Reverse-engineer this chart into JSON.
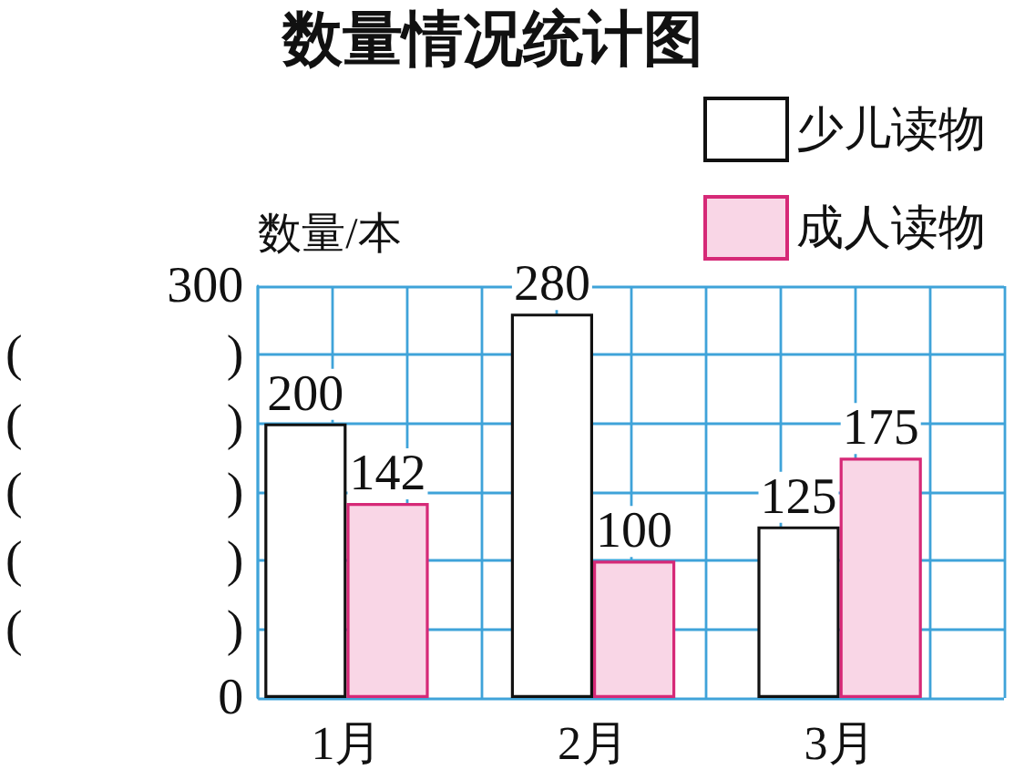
{
  "chart_data": {
    "type": "bar",
    "title": "数量情况统计图",
    "ylabel": "数量/本",
    "categories": [
      "1月",
      "2月",
      "3月"
    ],
    "series": [
      {
        "name": "少儿读物",
        "color": "#ffffff",
        "values": [
          200,
          280,
          125
        ]
      },
      {
        "name": "成人读物",
        "color": "#f9d6e6",
        "values": [
          142,
          100,
          175
        ]
      }
    ],
    "ylim": [
      0,
      300
    ],
    "yticks": [
      0,
      {
        "value": 50,
        "label": "(　　　　)"
      },
      {
        "value": 100,
        "label": "(　　　　)"
      },
      {
        "value": 150,
        "label": "(　　　　)"
      },
      {
        "value": 200,
        "label": "(　　　　)"
      },
      {
        "value": 250,
        "label": "(　　　　)"
      },
      300
    ],
    "grid": true,
    "legend": "top right",
    "data_labels": true
  }
}
